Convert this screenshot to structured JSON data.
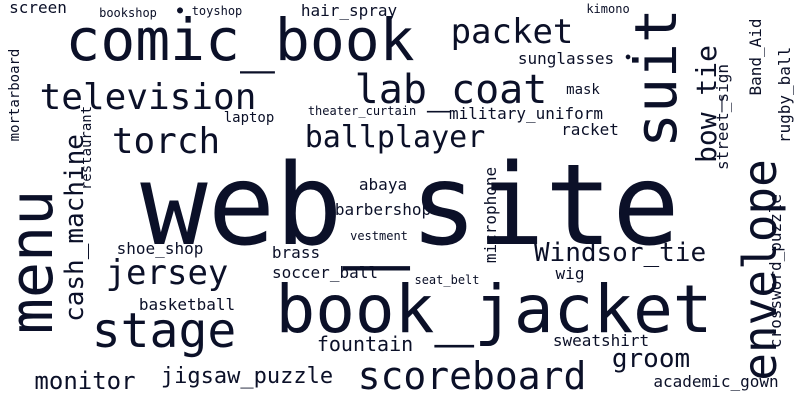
{
  "colors": {
    "background": "#ffffff",
    "text": "#0b1028"
  },
  "words": [
    "web_site",
    "book_jacket",
    "comic_book",
    "menu",
    "suit",
    "envelope",
    "stage",
    "scoreboard",
    "lab_coat",
    "television",
    "torch",
    "ballplayer",
    "packet",
    "jersey",
    "bow_tie",
    "cash_machine",
    "Windsor_tie",
    "groom",
    "monitor",
    "jigsaw_puzzle",
    "fountain",
    "academic_gown",
    "sweatshirt",
    "crossword_puzzle",
    "rugby_ball",
    "street_sign",
    "Band_Aid",
    "microphone",
    "military_uniform",
    "racket",
    "sunglasses",
    "mask",
    "laptop",
    "theater_curtain",
    "restaurant",
    "abaya",
    "barbershop",
    "vestment",
    "brass",
    "soccer_ball",
    "seat_belt",
    "wig",
    "shoe_shop",
    "basketball",
    "hair_spray",
    "mortarboard",
    "screen",
    "bookshop",
    "toyshop",
    "kimono"
  ]
}
